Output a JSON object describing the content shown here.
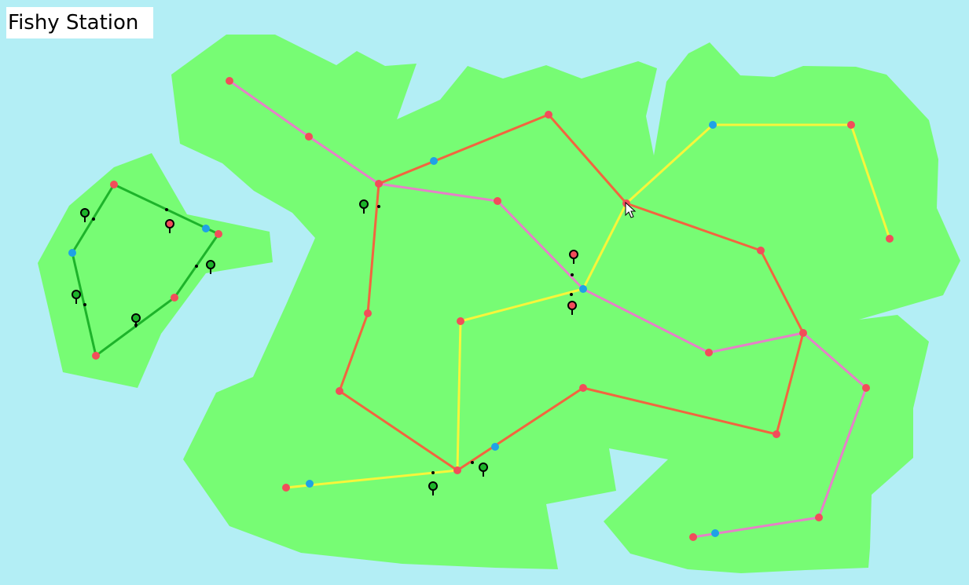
{
  "title": "Fishy Station",
  "colors": {
    "water": "#b3eef5",
    "land": "#77fc74",
    "station": "#f24d5a",
    "transfer": "#1fa1e6",
    "line_green": "#1db32a",
    "line_pink": "#e680c8",
    "line_orange": "#f2653f",
    "line_yellow": "#f7f53b"
  },
  "lines": [
    {
      "id": "green",
      "color": "#1db32a"
    },
    {
      "id": "pink",
      "color": "#e680c8"
    },
    {
      "id": "orange",
      "color": "#f2653f"
    },
    {
      "id": "yellow",
      "color": "#f7f53b"
    }
  ],
  "passenger_markers": [
    {
      "color": "#1db32a"
    },
    {
      "color": "#f24d5a"
    },
    {
      "color": "#1db32a"
    },
    {
      "color": "#1db32a"
    },
    {
      "color": "#1db32a"
    },
    {
      "color": "#1db32a"
    },
    {
      "color": "#f24d5a"
    },
    {
      "color": "#f24d5a"
    },
    {
      "color": "#1db32a"
    },
    {
      "color": "#1db32a"
    }
  ],
  "cursor": "arrow-cursor-icon"
}
